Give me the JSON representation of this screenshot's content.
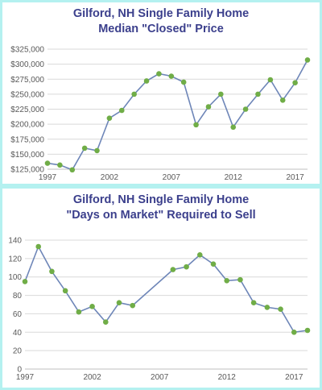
{
  "chart_data": [
    {
      "type": "line",
      "title": "Gilford, NH Single Family Home",
      "subtitle": "Median \"Closed\" Price",
      "x": [
        1997,
        1998,
        1999,
        2000,
        2001,
        2002,
        2003,
        2004,
        2005,
        2006,
        2007,
        2008,
        2009,
        2010,
        2011,
        2012,
        2013,
        2014,
        2015,
        2016,
        2017,
        2018
      ],
      "series": [
        {
          "values": [
            135000,
            132000,
            124000,
            160000,
            156000,
            210000,
            223000,
            250000,
            272000,
            284000,
            280000,
            270000,
            199000,
            229000,
            250000,
            195000,
            225000,
            250000,
            274000,
            240000,
            269000,
            307000
          ]
        }
      ],
      "ylim": [
        125000,
        325000
      ],
      "yticks": [
        125000,
        150000,
        175000,
        200000,
        225000,
        250000,
        275000,
        300000,
        325000
      ],
      "ytick_labels": [
        "$125,000",
        "$150,000",
        "$175,000",
        "$200,000",
        "$225,000",
        "$250,000",
        "$275,000",
        "$300,000",
        "$325,000"
      ],
      "xticks": [
        1997,
        2002,
        2007,
        2012,
        2017
      ],
      "xtick_labels": [
        "1997",
        "2002",
        "2007",
        "2012",
        "2017"
      ],
      "grid": true,
      "line_color": "#6e86b8",
      "marker_color": "#70ad47"
    },
    {
      "type": "line",
      "title": "Gilford, NH Single Family Home",
      "subtitle": "\"Days on Market\" Required to Sell",
      "x": [
        1997,
        1998,
        1999,
        2000,
        2001,
        2002,
        2003,
        2004,
        2005,
        2008,
        2009,
        2010,
        2011,
        2012,
        2013,
        2014,
        2015,
        2016,
        2017,
        2018
      ],
      "series": [
        {
          "values": [
            95,
            133,
            106,
            85,
            62,
            68,
            51,
            72,
            69,
            108,
            111,
            124,
            114,
            96,
            97,
            72,
            67,
            65,
            40,
            42
          ]
        }
      ],
      "ylim": [
        0,
        140
      ],
      "yticks": [
        0,
        20,
        40,
        60,
        80,
        100,
        120,
        140
      ],
      "ytick_labels": [
        "0",
        "20",
        "40",
        "60",
        "80",
        "100",
        "120",
        "140"
      ],
      "xticks": [
        1997,
        2002,
        2007,
        2012,
        2017
      ],
      "xtick_labels": [
        "1997",
        "2002",
        "2007",
        "2012",
        "2017"
      ],
      "grid": true,
      "line_color": "#6e86b8",
      "marker_color": "#70ad47"
    }
  ]
}
